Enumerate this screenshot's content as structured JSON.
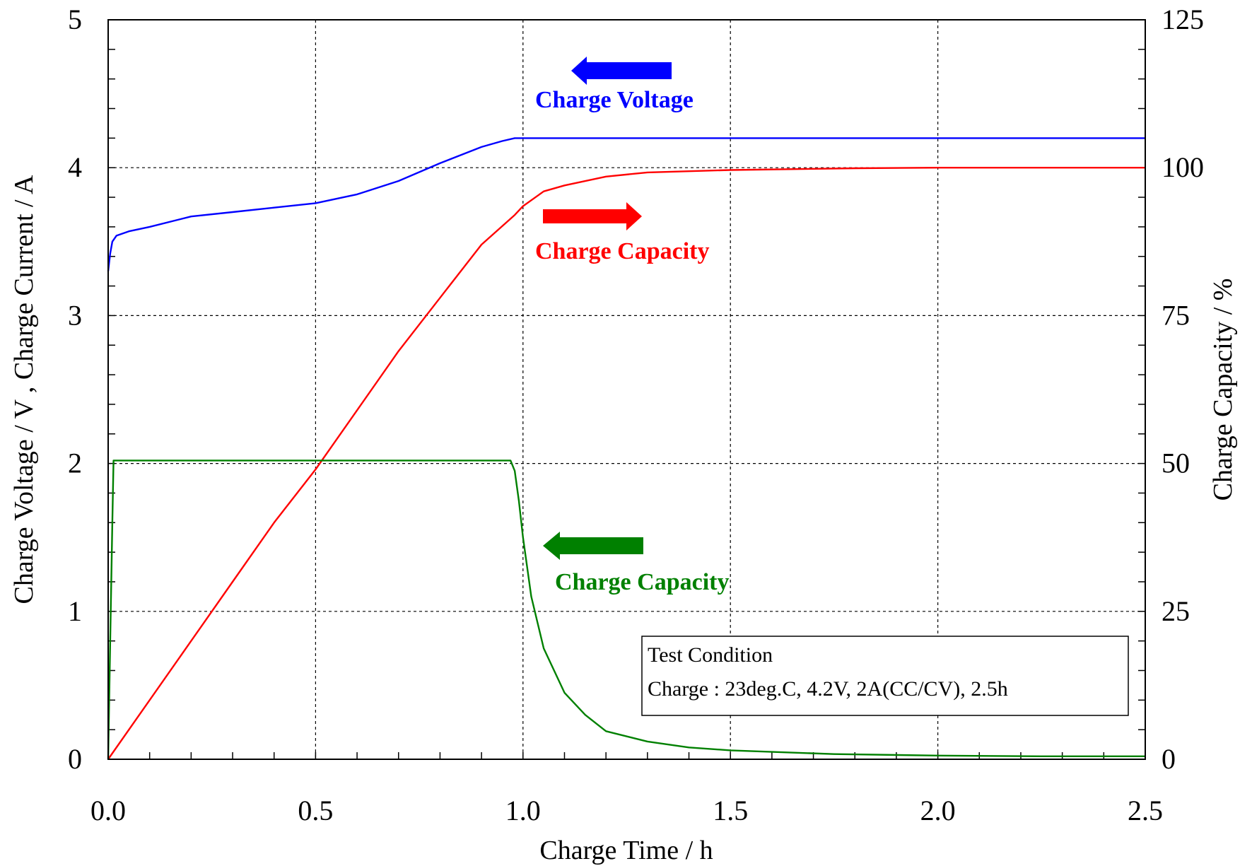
{
  "chart_data": {
    "type": "line",
    "title": "",
    "xlabel": "Charge Time / h",
    "ylabel_left": "Charge Voltage / V , Charge Current / A",
    "ylabel_right": "Charge Capacity / %",
    "xlim": [
      0,
      2.5
    ],
    "ylim_left": [
      0,
      5
    ],
    "ylim_right": [
      0,
      125
    ],
    "grid": true,
    "x_ticks": [
      "0.0",
      "0.5",
      "1.0",
      "1.5",
      "2.0",
      "2.5"
    ],
    "y_left_ticks": [
      "0",
      "1",
      "2",
      "3",
      "4",
      "5"
    ],
    "y_right_ticks": [
      "0",
      "25",
      "50",
      "75",
      "100",
      "125"
    ],
    "series": [
      {
        "name": "Charge Voltage",
        "axis": "left",
        "color": "#0000ff",
        "x": [
          0.0,
          0.005,
          0.01,
          0.02,
          0.05,
          0.1,
          0.2,
          0.3,
          0.4,
          0.5,
          0.6,
          0.7,
          0.8,
          0.9,
          0.95,
          0.98,
          1.0,
          1.5,
          2.0,
          2.5
        ],
        "y": [
          3.3,
          3.42,
          3.5,
          3.54,
          3.57,
          3.6,
          3.67,
          3.7,
          3.73,
          3.76,
          3.82,
          3.91,
          4.03,
          4.14,
          4.18,
          4.2,
          4.2,
          4.2,
          4.2,
          4.2
        ]
      },
      {
        "name": "Charge Capacity",
        "axis": "right",
        "color": "#ff0000",
        "x": [
          0.0,
          0.1,
          0.2,
          0.3,
          0.4,
          0.5,
          0.6,
          0.7,
          0.8,
          0.9,
          0.98,
          1.0,
          1.05,
          1.1,
          1.2,
          1.3,
          1.5,
          1.8,
          2.0,
          2.5
        ],
        "y": [
          0,
          10,
          20,
          30,
          40,
          49,
          59,
          69,
          78,
          87,
          92,
          93.5,
          96,
          97,
          98.5,
          99.2,
          99.6,
          99.9,
          100,
          100
        ]
      },
      {
        "name": "Charge Capacity",
        "axis": "left",
        "color": "#008000",
        "x": [
          0.0,
          0.005,
          0.01,
          0.013,
          0.02,
          0.1,
          0.5,
          0.9,
          0.97,
          0.98,
          0.99,
          1.0,
          1.02,
          1.05,
          1.1,
          1.15,
          1.2,
          1.3,
          1.4,
          1.5,
          1.75,
          2.0,
          2.25,
          2.5
        ],
        "y": [
          0.0,
          0.8,
          1.6,
          2.02,
          2.02,
          2.02,
          2.02,
          2.02,
          2.02,
          1.95,
          1.75,
          1.5,
          1.1,
          0.75,
          0.45,
          0.3,
          0.19,
          0.12,
          0.08,
          0.06,
          0.035,
          0.025,
          0.02,
          0.02
        ]
      }
    ],
    "annotations": [
      {
        "text": "Charge Voltage",
        "color": "#0000ff",
        "arrow": "left"
      },
      {
        "text": "Charge Capacity",
        "color": "#ff0000",
        "arrow": "right"
      },
      {
        "text": "Charge Capacity",
        "color": "#008000",
        "arrow": "left"
      }
    ],
    "legend_box": {
      "lines": [
        "Test Condition",
        "Charge : 23deg.C, 4.2V, 2A(CC/CV), 2.5h"
      ],
      "placement": "bottom-right"
    }
  }
}
